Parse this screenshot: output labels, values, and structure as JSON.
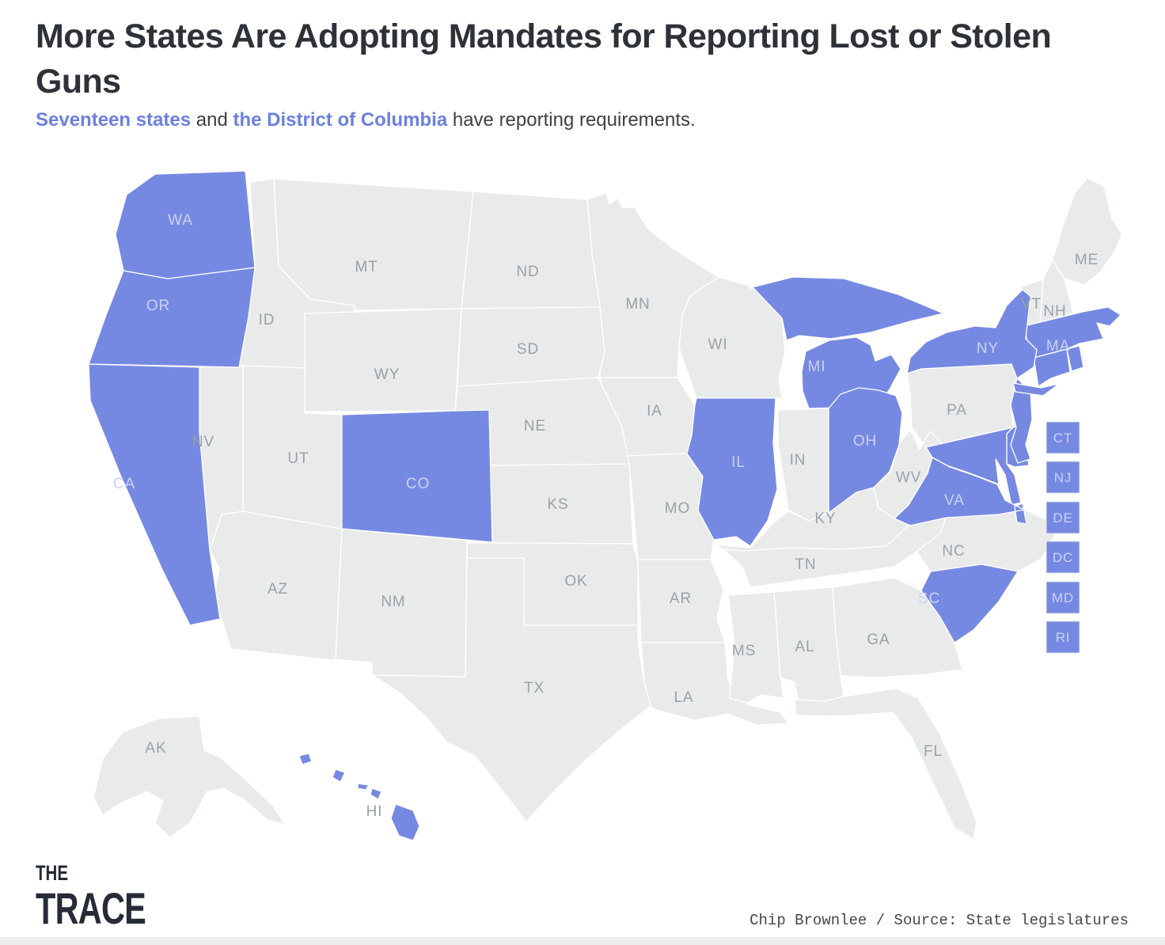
{
  "header": {
    "title": "More States Are Adopting Mandates for Reporting Lost or Stolen Guns",
    "subtitle_parts": [
      {
        "text": "Seventeen states",
        "link": true
      },
      {
        "text": " and ",
        "link": false
      },
      {
        "text": "the District of Columbia",
        "link": true
      },
      {
        "text": " have reporting requirements.",
        "link": false
      }
    ]
  },
  "colors": {
    "highlight": "#7689e2",
    "base": "#e9ebeb",
    "border": "#ffffff",
    "label_base": "#9aa1a8",
    "label_highlight": "#c9d2f3",
    "legend_box_border": "#e2e4e7",
    "title_text": "#2e3238",
    "link_text": "#6b80e0"
  },
  "chart_data": {
    "type": "choropleth_map",
    "title": "More States Are Adopting Mandates for Reporting Lost or Stolen Guns",
    "subtitle": "Seventeen states and the District of Columbia have reporting requirements.",
    "value_meaning": "has lost/stolen gun reporting requirement",
    "highlighted_states": [
      "WA",
      "OR",
      "CA",
      "CO",
      "HI",
      "IL",
      "MI",
      "OH",
      "NY",
      "MA",
      "CT",
      "RI",
      "NJ",
      "DE",
      "MD",
      "DC",
      "VA",
      "SC"
    ],
    "legend_position": "right-middle-small-state-boxes"
  },
  "map": {
    "states": [
      {
        "abbr": "AK",
        "highlighted": false,
        "label_on_map": true
      },
      {
        "abbr": "AL",
        "highlighted": false,
        "label_on_map": true
      },
      {
        "abbr": "AR",
        "highlighted": false,
        "label_on_map": true
      },
      {
        "abbr": "AZ",
        "highlighted": false,
        "label_on_map": true
      },
      {
        "abbr": "CA",
        "highlighted": true,
        "label_on_map": true
      },
      {
        "abbr": "CO",
        "highlighted": true,
        "label_on_map": true
      },
      {
        "abbr": "CT",
        "highlighted": true,
        "label_on_map": false
      },
      {
        "abbr": "DC",
        "highlighted": true,
        "label_on_map": false
      },
      {
        "abbr": "DE",
        "highlighted": true,
        "label_on_map": false
      },
      {
        "abbr": "FL",
        "highlighted": false,
        "label_on_map": true
      },
      {
        "abbr": "GA",
        "highlighted": false,
        "label_on_map": true
      },
      {
        "abbr": "HI",
        "highlighted": true,
        "label_on_map": true
      },
      {
        "abbr": "IA",
        "highlighted": false,
        "label_on_map": true
      },
      {
        "abbr": "ID",
        "highlighted": false,
        "label_on_map": true
      },
      {
        "abbr": "IL",
        "highlighted": true,
        "label_on_map": true
      },
      {
        "abbr": "IN",
        "highlighted": false,
        "label_on_map": true
      },
      {
        "abbr": "KS",
        "highlighted": false,
        "label_on_map": true
      },
      {
        "abbr": "KY",
        "highlighted": false,
        "label_on_map": true
      },
      {
        "abbr": "LA",
        "highlighted": false,
        "label_on_map": true
      },
      {
        "abbr": "MA",
        "highlighted": true,
        "label_on_map": true
      },
      {
        "abbr": "MD",
        "highlighted": true,
        "label_on_map": false
      },
      {
        "abbr": "ME",
        "highlighted": false,
        "label_on_map": true
      },
      {
        "abbr": "MI",
        "highlighted": true,
        "label_on_map": true
      },
      {
        "abbr": "MN",
        "highlighted": false,
        "label_on_map": true
      },
      {
        "abbr": "MO",
        "highlighted": false,
        "label_on_map": true
      },
      {
        "abbr": "MS",
        "highlighted": false,
        "label_on_map": true
      },
      {
        "abbr": "MT",
        "highlighted": false,
        "label_on_map": true
      },
      {
        "abbr": "NC",
        "highlighted": false,
        "label_on_map": true
      },
      {
        "abbr": "ND",
        "highlighted": false,
        "label_on_map": true
      },
      {
        "abbr": "NE",
        "highlighted": false,
        "label_on_map": true
      },
      {
        "abbr": "NH",
        "highlighted": false,
        "label_on_map": true
      },
      {
        "abbr": "NJ",
        "highlighted": true,
        "label_on_map": false
      },
      {
        "abbr": "NM",
        "highlighted": false,
        "label_on_map": true
      },
      {
        "abbr": "NV",
        "highlighted": false,
        "label_on_map": true
      },
      {
        "abbr": "NY",
        "highlighted": true,
        "label_on_map": true
      },
      {
        "abbr": "OH",
        "highlighted": true,
        "label_on_map": true
      },
      {
        "abbr": "OK",
        "highlighted": false,
        "label_on_map": true
      },
      {
        "abbr": "OR",
        "highlighted": true,
        "label_on_map": true
      },
      {
        "abbr": "PA",
        "highlighted": false,
        "label_on_map": true
      },
      {
        "abbr": "RI",
        "highlighted": true,
        "label_on_map": false
      },
      {
        "abbr": "SC",
        "highlighted": true,
        "label_on_map": true
      },
      {
        "abbr": "SD",
        "highlighted": false,
        "label_on_map": true
      },
      {
        "abbr": "TN",
        "highlighted": false,
        "label_on_map": true
      },
      {
        "abbr": "TX",
        "highlighted": false,
        "label_on_map": true
      },
      {
        "abbr": "UT",
        "highlighted": false,
        "label_on_map": true
      },
      {
        "abbr": "VA",
        "highlighted": true,
        "label_on_map": true
      },
      {
        "abbr": "VT",
        "highlighted": false,
        "label_on_map": true
      },
      {
        "abbr": "WA",
        "highlighted": true,
        "label_on_map": true
      },
      {
        "abbr": "WI",
        "highlighted": false,
        "label_on_map": true
      },
      {
        "abbr": "WV",
        "highlighted": false,
        "label_on_map": true
      },
      {
        "abbr": "WY",
        "highlighted": false,
        "label_on_map": true
      }
    ],
    "legend_boxes": [
      "CT",
      "NJ",
      "DE",
      "DC",
      "MD",
      "RI"
    ]
  },
  "footer": {
    "logo_line1": "THE",
    "logo_line2": "TRACE",
    "credit": "Chip Brownlee / Source: State legislatures"
  }
}
